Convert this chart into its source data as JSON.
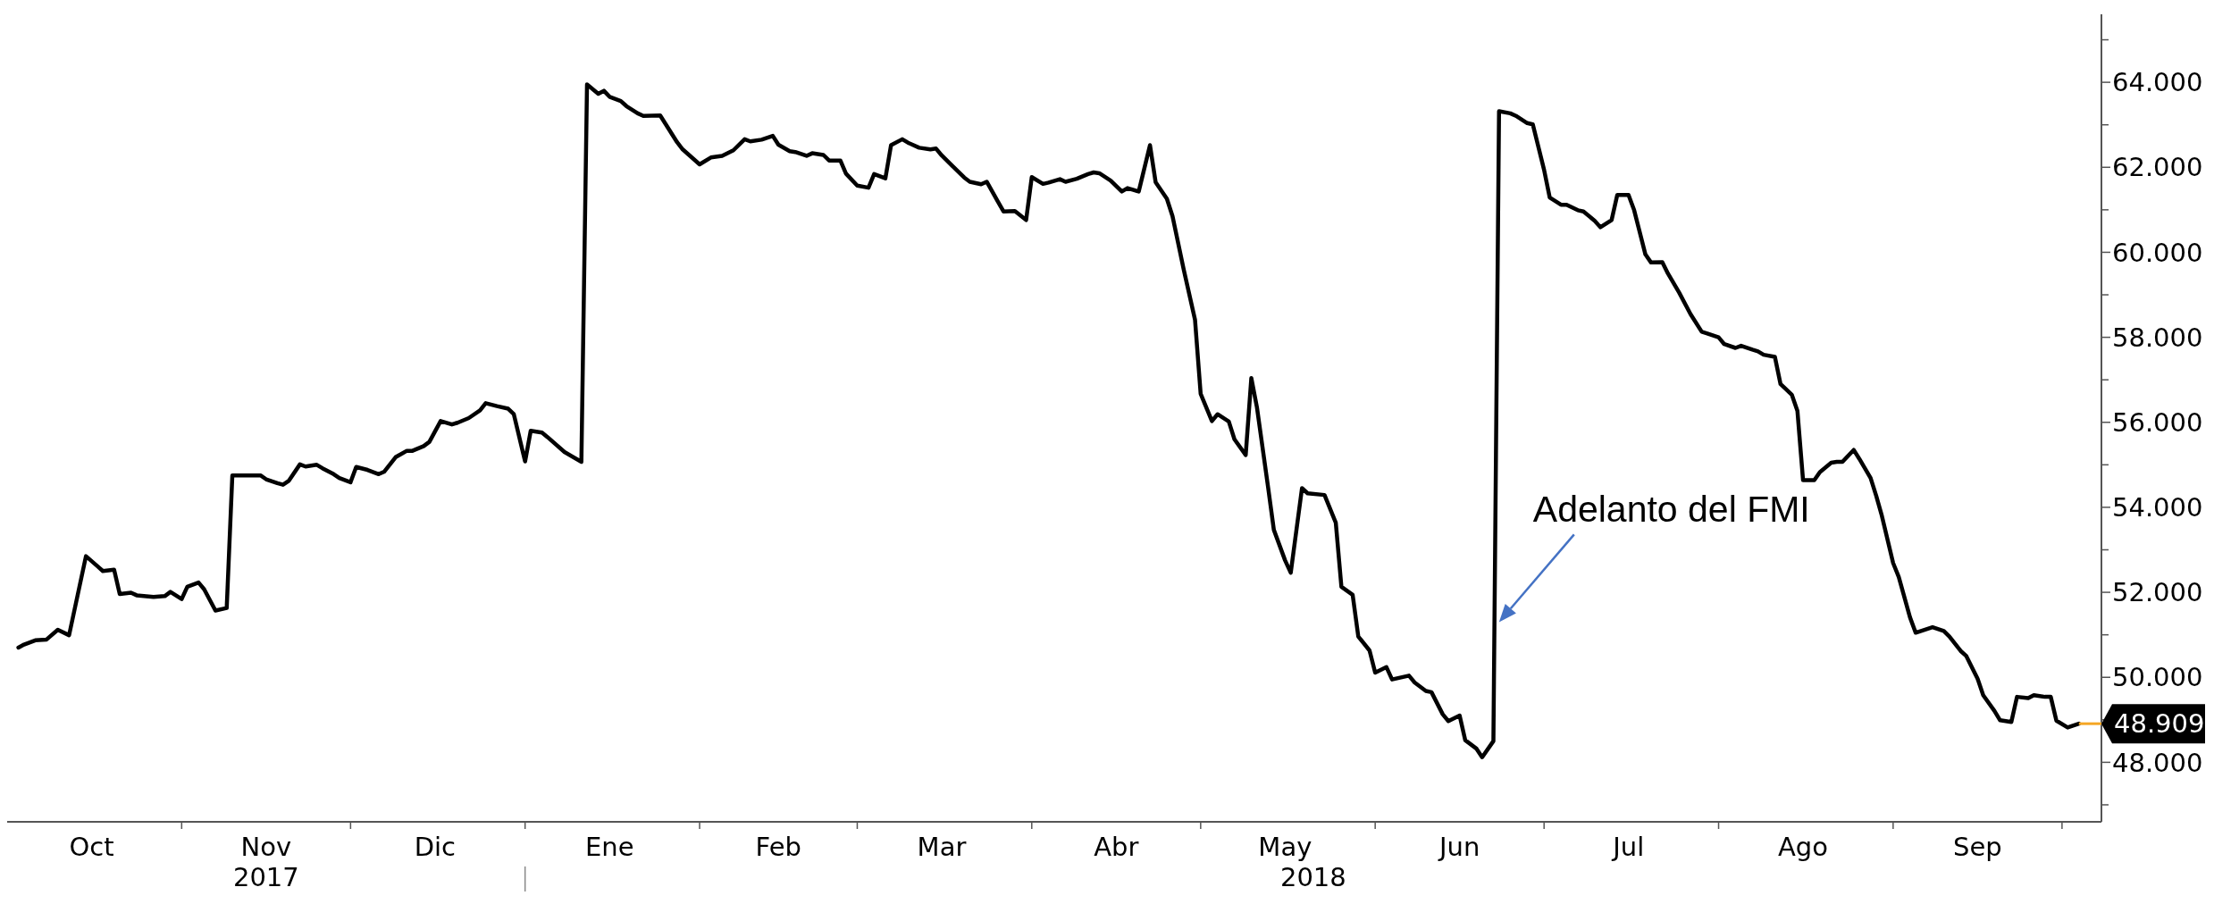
{
  "chart_data": {
    "type": "line",
    "x": [
      "2017-10-03",
      "2017-10-04",
      "2017-10-06",
      "2017-10-08",
      "2017-10-10",
      "2017-10-12",
      "2017-10-15",
      "2017-10-17",
      "2017-10-18",
      "2017-10-20",
      "2017-10-21",
      "2017-10-23",
      "2017-10-24",
      "2017-10-27",
      "2017-10-29",
      "2017-10-30",
      "2017-11-01",
      "2017-11-02",
      "2017-11-04",
      "2017-11-05",
      "2017-11-07",
      "2017-11-09",
      "2017-11-10",
      "2017-11-15",
      "2017-11-16",
      "2017-11-18",
      "2017-11-19",
      "2017-11-20",
      "2017-11-22",
      "2017-11-23",
      "2017-11-25",
      "2017-11-26",
      "2017-11-28",
      "2017-11-29",
      "2017-12-01",
      "2017-12-02",
      "2017-12-04",
      "2017-12-06",
      "2017-12-07",
      "2017-12-09",
      "2017-12-11",
      "2017-12-12",
      "2017-12-14",
      "2017-12-15",
      "2017-12-17",
      "2017-12-19",
      "2017-12-20",
      "2017-12-22",
      "2017-12-24",
      "2017-12-25",
      "2017-12-27",
      "2017-12-29",
      "2017-12-30",
      "2018-01-01",
      "2018-01-02",
      "2018-01-04",
      "2018-01-05",
      "2018-01-08",
      "2018-01-11",
      "2018-01-12",
      "2018-01-14",
      "2018-01-15",
      "2018-01-16",
      "2018-01-18",
      "2018-01-19",
      "2018-01-21",
      "2018-01-22",
      "2018-01-25",
      "2018-01-26",
      "2018-01-28",
      "2018-01-29",
      "2018-02-01",
      "2018-02-03",
      "2018-02-05",
      "2018-02-07",
      "2018-02-09",
      "2018-02-10",
      "2018-02-12",
      "2018-02-14",
      "2018-02-15",
      "2018-02-17",
      "2018-02-18",
      "2018-02-20",
      "2018-02-21",
      "2018-02-23",
      "2018-02-24",
      "2018-02-26",
      "2018-02-27",
      "2018-03-01",
      "2018-03-03",
      "2018-03-04",
      "2018-03-06",
      "2018-03-07",
      "2018-03-09",
      "2018-03-10",
      "2018-03-12",
      "2018-03-14",
      "2018-03-15",
      "2018-03-16",
      "2018-03-18",
      "2018-03-20",
      "2018-03-21",
      "2018-03-23",
      "2018-03-24",
      "2018-03-26",
      "2018-03-27",
      "2018-03-29",
      "2018-03-31",
      "2018-04-01",
      "2018-04-03",
      "2018-04-04",
      "2018-04-06",
      "2018-04-07",
      "2018-04-09",
      "2018-04-11",
      "2018-04-12",
      "2018-04-13",
      "2018-04-15",
      "2018-04-17",
      "2018-04-18",
      "2018-04-20",
      "2018-04-22",
      "2018-04-23",
      "2018-04-25",
      "2018-04-26",
      "2018-04-28",
      "2018-04-30",
      "2018-05-01",
      "2018-05-03",
      "2018-05-04",
      "2018-05-06",
      "2018-05-07",
      "2018-05-09",
      "2018-05-10",
      "2018-05-11",
      "2018-05-13",
      "2018-05-14",
      "2018-05-16",
      "2018-05-17",
      "2018-05-19",
      "2018-05-20",
      "2018-05-23",
      "2018-05-25",
      "2018-05-26",
      "2018-05-28",
      "2018-05-29",
      "2018-05-31",
      "2018-06-01",
      "2018-06-03",
      "2018-06-04",
      "2018-06-07",
      "2018-06-08",
      "2018-06-10",
      "2018-06-11",
      "2018-06-13",
      "2018-06-14",
      "2018-06-16",
      "2018-06-17",
      "2018-06-19",
      "2018-06-20",
      "2018-06-22",
      "2018-06-23",
      "2018-06-25",
      "2018-06-26",
      "2018-06-28",
      "2018-06-29",
      "2018-07-01",
      "2018-07-02",
      "2018-07-04",
      "2018-07-05",
      "2018-07-07",
      "2018-07-08",
      "2018-07-10",
      "2018-07-11",
      "2018-07-13",
      "2018-07-14",
      "2018-07-16",
      "2018-07-17",
      "2018-07-19",
      "2018-07-20",
      "2018-07-22",
      "2018-07-23",
      "2018-07-25",
      "2018-07-27",
      "2018-07-29",
      "2018-07-30",
      "2018-08-01",
      "2018-08-02",
      "2018-08-04",
      "2018-08-05",
      "2018-08-07",
      "2018-08-08",
      "2018-08-09",
      "2018-08-11",
      "2018-08-12",
      "2018-08-14",
      "2018-08-15",
      "2018-08-16",
      "2018-08-18",
      "2018-08-19",
      "2018-08-21",
      "2018-08-22",
      "2018-08-23",
      "2018-08-25",
      "2018-08-26",
      "2018-08-28",
      "2018-08-29",
      "2018-08-30",
      "2018-09-01",
      "2018-09-02",
      "2018-09-04",
      "2018-09-05",
      "2018-09-08",
      "2018-09-10",
      "2018-09-11",
      "2018-09-13",
      "2018-09-14",
      "2018-09-16",
      "2018-09-17",
      "2018-09-19",
      "2018-09-20",
      "2018-09-22",
      "2018-09-23",
      "2018-09-25",
      "2018-09-26",
      "2018-09-28",
      "2018-09-29",
      "2018-09-30",
      "2018-10-02",
      "2018-10-04"
    ],
    "series": [
      {
        "color": "#000000",
        "values": [
          50.7,
          50.77,
          50.87,
          50.89,
          51.12,
          50.99,
          52.85,
          52.62,
          52.5,
          52.53,
          51.96,
          51.99,
          51.93,
          51.89,
          51.91,
          52.01,
          51.84,
          52.13,
          52.23,
          52.07,
          51.57,
          51.63,
          54.75,
          54.75,
          54.66,
          54.57,
          54.53,
          54.62,
          55.01,
          54.96,
          55.0,
          54.92,
          54.78,
          54.69,
          54.59,
          54.95,
          54.88,
          54.78,
          54.84,
          55.18,
          55.33,
          55.33,
          55.44,
          55.54,
          56.03,
          55.95,
          55.99,
          56.1,
          56.28,
          56.45,
          56.38,
          56.32,
          56.19,
          55.08,
          55.8,
          55.76,
          55.65,
          55.3,
          55.07,
          63.95,
          63.73,
          63.8,
          63.66,
          63.56,
          63.44,
          63.27,
          63.21,
          63.22,
          63.01,
          62.59,
          62.42,
          62.07,
          62.23,
          62.27,
          62.4,
          62.66,
          62.61,
          62.65,
          62.74,
          62.53,
          62.38,
          62.36,
          62.27,
          62.33,
          62.29,
          62.16,
          62.16,
          61.85,
          61.57,
          61.52,
          61.84,
          61.74,
          62.52,
          62.66,
          62.58,
          62.46,
          62.42,
          62.44,
          62.28,
          62.02,
          61.76,
          61.66,
          61.6,
          61.66,
          61.19,
          60.96,
          60.97,
          60.76,
          61.77,
          61.61,
          61.64,
          61.72,
          61.66,
          61.73,
          61.84,
          61.88,
          61.86,
          61.69,
          61.43,
          61.51,
          61.43,
          62.52,
          61.65,
          61.26,
          60.85,
          59.59,
          58.41,
          56.67,
          56.03,
          56.19,
          56.02,
          55.6,
          55.23,
          57.04,
          56.35,
          54.45,
          53.47,
          52.75,
          52.46,
          54.45,
          54.33,
          54.29,
          53.64,
          52.13,
          51.94,
          50.96,
          50.63,
          50.11,
          50.24,
          49.95,
          50.04,
          49.88,
          49.68,
          49.65,
          49.13,
          48.97,
          49.1,
          48.52,
          48.32,
          48.12,
          48.5,
          63.32,
          63.27,
          63.21,
          63.04,
          63.01,
          61.94,
          61.29,
          61.12,
          61.12,
          60.99,
          60.96,
          60.74,
          60.59,
          60.76,
          61.35,
          61.35,
          60.99,
          59.95,
          59.76,
          59.77,
          59.5,
          59.05,
          58.55,
          58.13,
          58.09,
          58.0,
          57.84,
          57.75,
          57.8,
          57.71,
          57.67,
          57.59,
          57.54,
          56.9,
          56.65,
          56.27,
          54.64,
          54.64,
          54.83,
          55.05,
          55.07,
          55.07,
          55.35,
          55.14,
          54.69,
          54.27,
          53.8,
          52.69,
          52.36,
          51.41,
          51.05,
          51.18,
          51.09,
          50.96,
          50.62,
          50.5,
          49.97,
          49.58,
          49.21,
          48.99,
          48.95,
          49.54,
          49.51,
          49.58,
          49.54,
          49.54,
          48.98,
          48.82,
          48.91
        ]
      }
    ],
    "xlim": [
      "2017-10-01",
      "2018-10-08"
    ],
    "xticks": [
      {
        "value": "2017-10-16",
        "label": "Oct"
      },
      {
        "value": "2017-11-01",
        "label": null
      },
      {
        "value": "2017-11-16",
        "label": "Nov"
      },
      {
        "value": "2017-12-01",
        "label": null
      },
      {
        "value": "2017-12-16",
        "label": "Dic"
      },
      {
        "value": "2018-01-01",
        "label": null
      },
      {
        "value": "2018-01-16",
        "label": "Ene"
      },
      {
        "value": "2018-02-01",
        "label": null
      },
      {
        "value": "2018-02-15",
        "label": "Feb"
      },
      {
        "value": "2018-03-01",
        "label": null
      },
      {
        "value": "2018-03-16",
        "label": "Mar"
      },
      {
        "value": "2018-04-01",
        "label": null
      },
      {
        "value": "2018-04-16",
        "label": "Abr"
      },
      {
        "value": "2018-05-01",
        "label": null
      },
      {
        "value": "2018-05-16",
        "label": "May"
      },
      {
        "value": "2018-06-01",
        "label": null
      },
      {
        "value": "2018-06-16",
        "label": "Jun"
      },
      {
        "value": "2018-07-01",
        "label": null
      },
      {
        "value": "2018-07-16",
        "label": "Jul"
      },
      {
        "value": "2018-08-01",
        "label": null
      },
      {
        "value": "2018-08-16",
        "label": "Ago"
      },
      {
        "value": "2018-09-01",
        "label": null
      },
      {
        "value": "2018-09-16",
        "label": "Sep"
      },
      {
        "value": "2018-10-01",
        "label": null
      }
    ],
    "ylim": [
      46.6,
      65.6
    ],
    "yticks": [
      {
        "value": 47,
        "label": null
      },
      {
        "value": 48,
        "label": "48.000"
      },
      {
        "value": 49,
        "label": null
      },
      {
        "value": 50,
        "label": "50.000"
      },
      {
        "value": 51,
        "label": null
      },
      {
        "value": 52,
        "label": "52.000"
      },
      {
        "value": 53,
        "label": null
      },
      {
        "value": 54,
        "label": "54.000"
      },
      {
        "value": 55,
        "label": null
      },
      {
        "value": 56,
        "label": "56.000"
      },
      {
        "value": 57,
        "label": null
      },
      {
        "value": 58,
        "label": "58.000"
      },
      {
        "value": 59,
        "label": null
      },
      {
        "value": 60,
        "label": "60.000"
      },
      {
        "value": 61,
        "label": null
      },
      {
        "value": 62,
        "label": "62.000"
      },
      {
        "value": 63,
        "label": null
      },
      {
        "value": 64,
        "label": "64.000"
      },
      {
        "value": 65,
        "label": null
      }
    ],
    "annotations": [
      {
        "text": "Adelanto del FMI",
        "x": "2018-06-23",
        "y": 51.3
      },
      "2017",
      "2018"
    ],
    "ref_lines": [
      {
        "axis": "y",
        "value": 48.909,
        "label": "48.909",
        "color": "#f5a623"
      }
    ]
  }
}
